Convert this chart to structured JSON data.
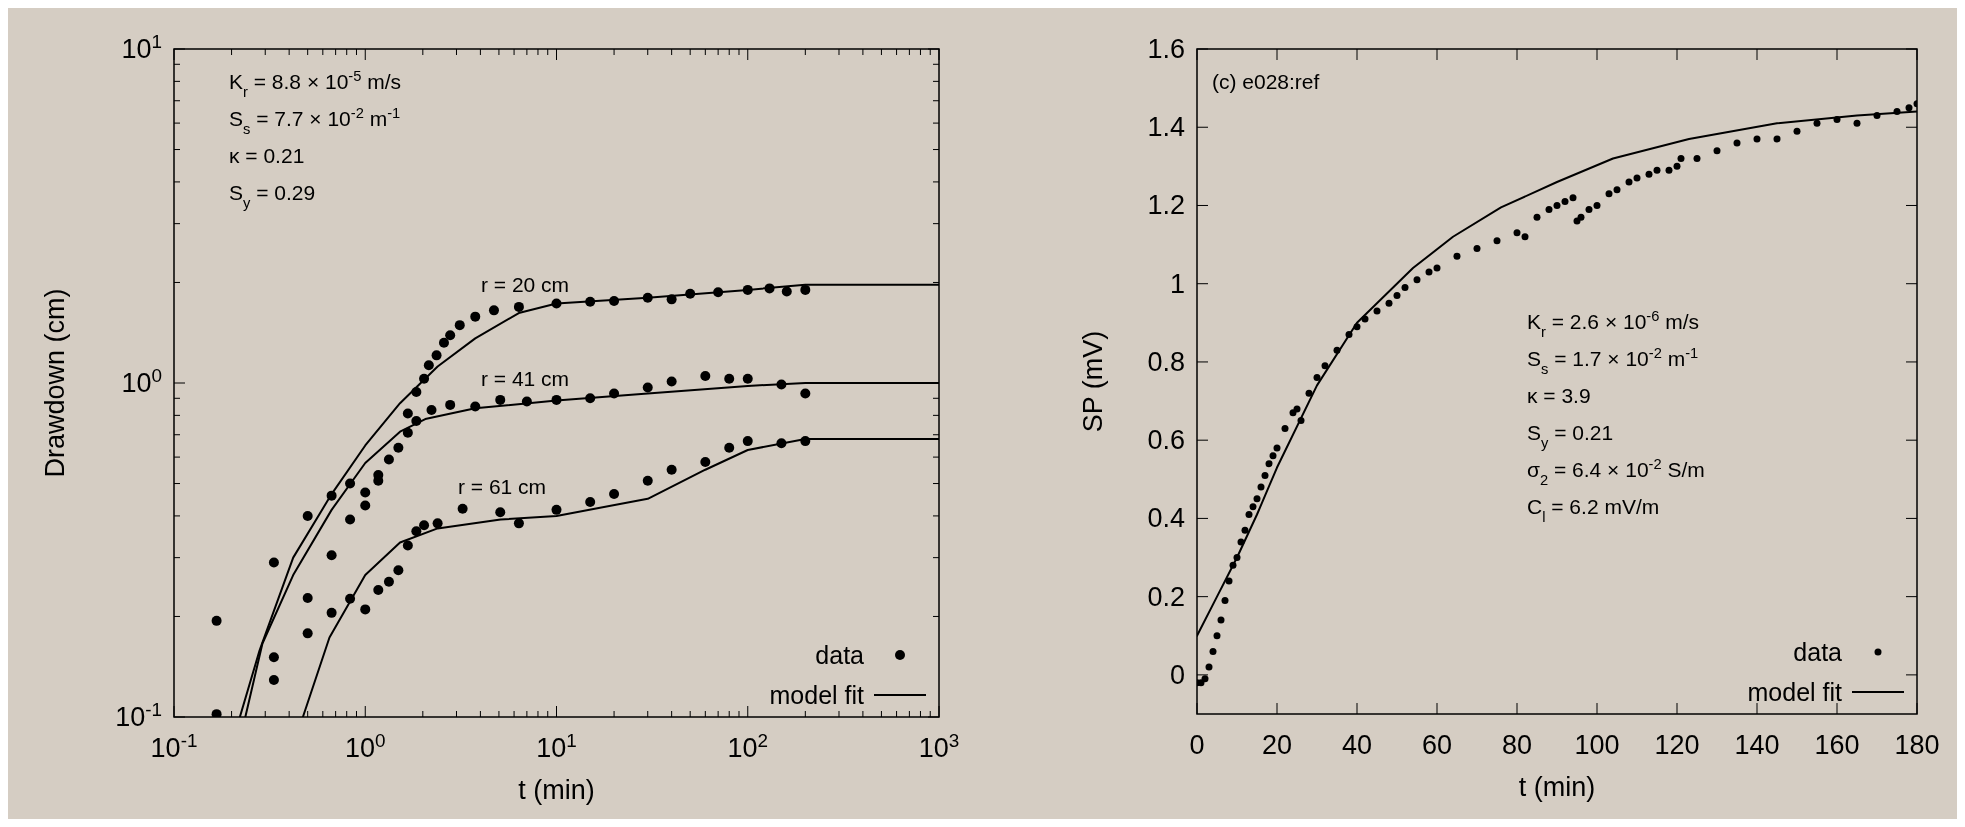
{
  "chart_data": [
    {
      "type": "scatter",
      "xlabel": "t (min)",
      "ylabel": "Drawdown (cm)",
      "log": "xy",
      "xlim": [
        0.1,
        1000
      ],
      "ylim": [
        0.1,
        10
      ],
      "legend": "bottom right",
      "xticks": [
        {
          "value": 0.1,
          "label": "10$^{-1}$"
        },
        {
          "value": 0.2,
          "label": null
        },
        {
          "value": 0.3,
          "label": null
        },
        {
          "value": 0.4,
          "label": null
        },
        {
          "value": 0.5,
          "label": null
        },
        {
          "value": 0.6,
          "label": null
        },
        {
          "value": 0.7,
          "label": null
        },
        {
          "value": 0.8,
          "label": null
        },
        {
          "value": 0.9,
          "label": null
        },
        {
          "value": 1,
          "label": "10$^{0}$"
        },
        {
          "value": 2,
          "label": null
        },
        {
          "value": 3,
          "label": null
        },
        {
          "value": 4,
          "label": null
        },
        {
          "value": 5,
          "label": null
        },
        {
          "value": 6,
          "label": null
        },
        {
          "value": 7,
          "label": null
        },
        {
          "value": 8,
          "label": null
        },
        {
          "value": 9,
          "label": null
        },
        {
          "value": 10,
          "label": "10$^{1}$"
        },
        {
          "value": 20,
          "label": null
        },
        {
          "value": 30,
          "label": null
        },
        {
          "value": 40,
          "label": null
        },
        {
          "value": 50,
          "label": null
        },
        {
          "value": 60,
          "label": null
        },
        {
          "value": 70,
          "label": null
        },
        {
          "value": 80,
          "label": null
        },
        {
          "value": 90,
          "label": null
        },
        {
          "value": 100,
          "label": "10$^{2}$"
        },
        {
          "value": 200,
          "label": null
        },
        {
          "value": 300,
          "label": null
        },
        {
          "value": 400,
          "label": null
        },
        {
          "value": 500,
          "label": null
        },
        {
          "value": 600,
          "label": null
        },
        {
          "value": 700,
          "label": null
        },
        {
          "value": 800,
          "label": null
        },
        {
          "value": 900,
          "label": null
        },
        {
          "value": 1000,
          "label": "10$^{3}$"
        }
      ],
      "yticks": [
        {
          "value": 0.1,
          "label": "10$^{-1}$"
        },
        {
          "value": 0.2,
          "label": null
        },
        {
          "value": 0.3,
          "label": null
        },
        {
          "value": 0.4,
          "label": null
        },
        {
          "value": 0.5,
          "label": null
        },
        {
          "value": 0.6,
          "label": null
        },
        {
          "value": 0.7,
          "label": null
        },
        {
          "value": 0.8,
          "label": null
        },
        {
          "value": 0.9,
          "label": null
        },
        {
          "value": 1,
          "label": "10$^{0}$"
        },
        {
          "value": 2,
          "label": null
        },
        {
          "value": 3,
          "label": null
        },
        {
          "value": 4,
          "label": null
        },
        {
          "value": 5,
          "label": null
        },
        {
          "value": 6,
          "label": null
        },
        {
          "value": 7,
          "label": null
        },
        {
          "value": 8,
          "label": null
        },
        {
          "value": 9,
          "label": null
        },
        {
          "value": 10,
          "label": "10$^{1}$"
        }
      ],
      "annotations": [
        "K$_{r}$ = 8.8 × 10$^{-5}$ m/s",
        "S$_{s}$ = 7.7 × 10$^{-2}$ m$^{-1}$",
        "κ  = 0.21",
        "S$_{y}$ = 0.29",
        "r = 20 cm",
        "r = 41 cm",
        "r = 61 cm"
      ],
      "series": [
        {
          "name": "data",
          "marker": "circle",
          "color": "#000000",
          "x": [
            0.167,
            0.167,
            0.333,
            0.333,
            0.333,
            0.5,
            0.5,
            0.5,
            0.667,
            0.667,
            0.667,
            0.833,
            0.833,
            0.833,
            1,
            1,
            1,
            1.17,
            1.17,
            1.17,
            1.67,
            1.85,
            2.03,
            2.15,
            2.36,
            2.58,
            2.78,
            3.12,
            3.76,
            4.71,
            6.36,
            10,
            15,
            20,
            30,
            40,
            50,
            70,
            100,
            130,
            160,
            200,
            1.33,
            1.49,
            1.67,
            1.85,
            2.22,
            2.78,
            3.76,
            5.08,
            7,
            10,
            15,
            20,
            30,
            40,
            60,
            80,
            100,
            150,
            200,
            1.33,
            1.49,
            1.67,
            1.85,
            2.03,
            2.39,
            3.23,
            5.08,
            6.36,
            10,
            15,
            20,
            30,
            40,
            60,
            80,
            100,
            150,
            200
          ],
          "values": [
            0.194,
            0.102,
            0.29,
            0.151,
            0.129,
            0.4,
            0.227,
            0.178,
            0.46,
            0.305,
            0.205,
            0.5,
            0.39,
            0.226,
            0.47,
            0.43,
            0.21,
            0.53,
            0.51,
            0.24,
            0.81,
            0.94,
            1.03,
            1.13,
            1.21,
            1.32,
            1.39,
            1.49,
            1.58,
            1.65,
            1.69,
            1.73,
            1.75,
            1.76,
            1.8,
            1.78,
            1.85,
            1.87,
            1.9,
            1.92,
            1.88,
            1.9,
            0.59,
            0.64,
            0.71,
            0.77,
            0.83,
            0.86,
            0.85,
            0.89,
            0.88,
            0.89,
            0.9,
            0.93,
            0.97,
            1.01,
            1.05,
            1.03,
            1.03,
            0.99,
            0.93,
            0.254,
            0.275,
            0.326,
            0.36,
            0.375,
            0.38,
            0.42,
            0.41,
            0.38,
            0.417,
            0.44,
            0.465,
            0.51,
            0.55,
            0.58,
            0.64,
            0.67,
            0.66,
            0.67
          ]
        },
        {
          "name": "model fit",
          "type": "line",
          "color": "#000000",
          "x": [
            0.221,
            0.28,
            0.42,
            0.667,
            1,
            1.52,
            2.39,
            3.76,
            6.35,
            10,
            30,
            100,
            200,
            1000
          ],
          "values": [
            0.1,
            0.158,
            0.3,
            0.465,
            0.65,
            0.87,
            1.12,
            1.36,
            1.62,
            1.73,
            1.8,
            1.9,
            1.97,
            1.97
          ]
        },
        {
          "type": "line",
          "color": "#000000",
          "x": [
            0.236,
            0.29,
            0.42,
            0.667,
            1,
            1.52,
            2.06,
            3.76,
            10,
            30,
            100,
            200,
            1000
          ],
          "values": [
            0.1,
            0.166,
            0.266,
            0.417,
            0.576,
            0.715,
            0.78,
            0.84,
            0.886,
            0.93,
            0.98,
            1.0,
            1.0
          ]
        },
        {
          "type": "line",
          "color": "#000000",
          "x": [
            0.472,
            0.65,
            1,
            1.52,
            2.39,
            5.1,
            10,
            30,
            60,
            100,
            200,
            1000
          ],
          "values": [
            0.1,
            0.173,
            0.266,
            0.333,
            0.367,
            0.39,
            0.4,
            0.45,
            0.55,
            0.63,
            0.68,
            0.68
          ]
        }
      ]
    },
    {
      "type": "scatter",
      "xlabel": "t (min)",
      "ylabel": "SP (mV)",
      "xlim": [
        0,
        180
      ],
      "ylim": [
        -0.1,
        1.6
      ],
      "legend": "bottom right",
      "xticks": [
        0,
        20,
        40,
        60,
        80,
        100,
        120,
        140,
        160,
        180
      ],
      "yticks": [
        0,
        0.2,
        0.4,
        0.6,
        0.8,
        1,
        1.2,
        1.4,
        1.6
      ],
      "annotations": [
        "(c) e028:ref",
        "K$_{r}$ = 2.6 × 10$^{-6}$ m/s",
        "S$_{s}$ = 1.7 × 10$^{-2}$ m$^{-1}$",
        "κ  = 3.9",
        "S$_{y}$ = 0.21",
        "σ$_{2}$ = 6.4 × 10$^{-2}$ S/m",
        "C$_{l}$ = 6.2 mV/m"
      ],
      "series": [
        {
          "name": "data",
          "marker": "circle",
          "color": "#000000",
          "x": [
            0,
            1,
            2,
            3,
            4,
            5,
            6,
            7,
            8,
            9,
            10,
            11,
            12,
            13,
            14,
            15,
            16,
            17,
            18,
            19,
            20,
            22,
            24,
            25,
            26,
            28,
            30,
            32,
            35,
            38,
            40,
            42,
            45,
            48,
            50,
            52,
            55,
            58,
            60,
            65,
            70,
            75,
            80,
            82,
            85,
            88,
            90,
            92,
            94,
            95,
            96,
            98,
            100,
            103,
            105,
            108,
            110,
            113,
            115,
            118,
            120,
            121,
            125,
            130,
            135,
            140,
            145,
            150,
            155,
            160,
            165,
            170,
            175,
            178,
            180
          ],
          "values": [
            -0.02,
            -0.02,
            -0.01,
            0.02,
            0.06,
            0.1,
            0.14,
            0.19,
            0.24,
            0.28,
            0.3,
            0.34,
            0.37,
            0.41,
            0.43,
            0.45,
            0.48,
            0.51,
            0.54,
            0.56,
            0.58,
            0.63,
            0.67,
            0.68,
            0.65,
            0.72,
            0.76,
            0.79,
            0.83,
            0.87,
            0.89,
            0.91,
            0.93,
            0.95,
            0.97,
            0.99,
            1.01,
            1.03,
            1.04,
            1.07,
            1.09,
            1.11,
            1.13,
            1.12,
            1.17,
            1.19,
            1.2,
            1.21,
            1.22,
            1.16,
            1.17,
            1.19,
            1.2,
            1.23,
            1.24,
            1.26,
            1.27,
            1.28,
            1.29,
            1.29,
            1.3,
            1.32,
            1.32,
            1.34,
            1.36,
            1.37,
            1.37,
            1.39,
            1.41,
            1.42,
            1.41,
            1.43,
            1.44,
            1.45,
            1.46
          ]
        },
        {
          "name": "model fit",
          "type": "line",
          "color": "#000000",
          "x": [
            0,
            5,
            10,
            15,
            20,
            30,
            40,
            54,
            64,
            76,
            90,
            104,
            123,
            145,
            165,
            180
          ],
          "values": [
            0.1,
            0.2,
            0.3,
            0.41,
            0.53,
            0.74,
            0.9,
            1.04,
            1.12,
            1.195,
            1.26,
            1.32,
            1.37,
            1.41,
            1.43,
            1.44
          ]
        }
      ]
    }
  ]
}
